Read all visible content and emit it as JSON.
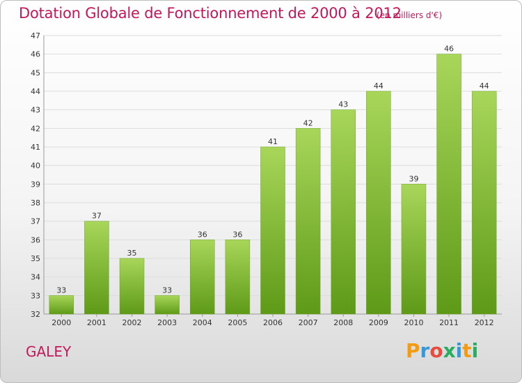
{
  "header": {
    "title": "Dotation Globale de Fonctionnement de 2000 à 2012",
    "subtitle": "(en milliers d'€)"
  },
  "footer": {
    "place": "GALEY",
    "logo_text": "Proxiti",
    "logo_colors": [
      "#f39c12",
      "#3498db",
      "#e74c3c",
      "#27ae60",
      "#3498db",
      "#f39c12",
      "#27ae60"
    ]
  },
  "chart_data": {
    "type": "bar",
    "title": "Dotation Globale de Fonctionnement de 2000 à 2012",
    "subtitle": "(en milliers d'€)",
    "categories": [
      "2000",
      "2001",
      "2002",
      "2003",
      "2004",
      "2005",
      "2006",
      "2007",
      "2008",
      "2009",
      "2010",
      "2011",
      "2012"
    ],
    "values": [
      33,
      37,
      35,
      33,
      36,
      36,
      41,
      42,
      43,
      44,
      39,
      46,
      44
    ],
    "ylim": [
      32,
      47
    ],
    "yticks": [
      32,
      33,
      34,
      35,
      36,
      37,
      38,
      39,
      40,
      41,
      42,
      43,
      44,
      45,
      46,
      47
    ],
    "grid": true,
    "bar_color_top": "#a8d65a",
    "bar_color_bottom": "#5e9a17",
    "data_labels": true
  }
}
